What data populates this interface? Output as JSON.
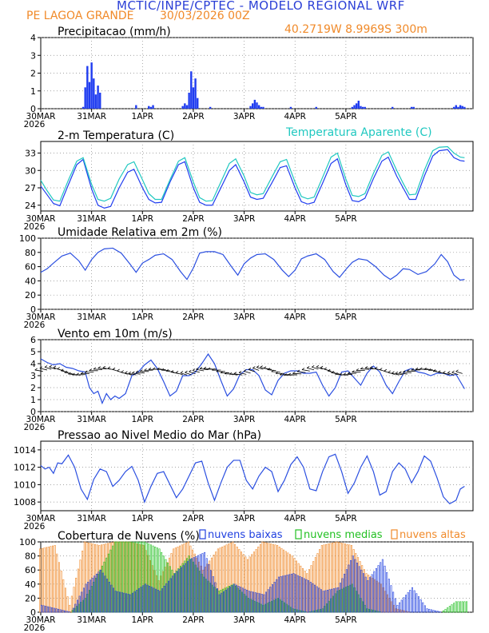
{
  "header": {
    "title": "MCTIC/INPE/CPTEC - MODELO REGIONAL WRF",
    "station": "PE LAGOA GRANDE",
    "run": "30/03/2026 00Z",
    "coords": "40.2719W 8.9969S 300m"
  },
  "colors": {
    "title": "#2b3fd6",
    "station": "#f08a2a",
    "precip": "#1f3cf0",
    "temp": "#1f3cf0",
    "apparent": "#20c8c0",
    "humidity": "#2b4fe0",
    "wind": "#2b4fe0",
    "pressure": "#2b4fe0",
    "low_cloud": "#2040e0",
    "mid_cloud": "#22c022",
    "high_cloud": "#f08a2a"
  },
  "x_axis": {
    "ticks": [
      "30MAR",
      "31MAR",
      "1APR",
      "2APR",
      "3APR",
      "4APR",
      "5APR"
    ],
    "year": "2026"
  },
  "chart_data": [
    {
      "type": "bar",
      "title": "Precipitacao (mm/h)",
      "ylim": [
        0,
        4
      ],
      "yticks": [
        "0",
        "1",
        "2",
        "3",
        "4"
      ],
      "x_hours": [
        20,
        21,
        22,
        23,
        24,
        25,
        26,
        27,
        28,
        45,
        51,
        52,
        53,
        67,
        68,
        69,
        70,
        71,
        72,
        73,
        74,
        80,
        99,
        100,
        101,
        102,
        103,
        104,
        105,
        118,
        130,
        147,
        148,
        149,
        150,
        151,
        152,
        153,
        166,
        175,
        176,
        195,
        196,
        197,
        198,
        199,
        200
      ],
      "values": [
        0.1,
        1.2,
        2.4,
        1.5,
        2.6,
        1.7,
        0.8,
        1.3,
        0.9,
        0.2,
        0.15,
        0.1,
        0.2,
        0.15,
        0.3,
        0.2,
        0.9,
        2.1,
        1.2,
        1.7,
        0.6,
        0.1,
        0.15,
        0.3,
        0.5,
        0.35,
        0.2,
        0.1,
        0.1,
        0.1,
        0.1,
        0.1,
        0.2,
        0.3,
        0.45,
        0.15,
        0.1,
        0.1,
        0.1,
        0.1,
        0.1,
        0.1,
        0.2,
        0.1,
        0.2,
        0.15,
        0.1
      ]
    },
    {
      "type": "line",
      "title": "2-m Temperatura (C)",
      "legend": "Temperatura Aparente (C)",
      "ylim": [
        23,
        35
      ],
      "yticks": [
        "24",
        "27",
        "30",
        "33"
      ],
      "series": [
        {
          "name": "2-m Temperatura (C)",
          "x": [
            0,
            3,
            6,
            9,
            13,
            17,
            20,
            24,
            27,
            30,
            33,
            37,
            41,
            44,
            48,
            51,
            54,
            57,
            61,
            65,
            68,
            72,
            75,
            78,
            81,
            85,
            89,
            92,
            96,
            99,
            102,
            105,
            109,
            113,
            116,
            120,
            123,
            126,
            129,
            133,
            137,
            140,
            144,
            147,
            150,
            153,
            157,
            161,
            164,
            168,
            171,
            174,
            177,
            181,
            185,
            188,
            192,
            195,
            198,
            200
          ],
          "values": [
            27.3,
            25.8,
            24.3,
            23.9,
            27.5,
            31.0,
            31.9,
            26.8,
            24.0,
            23.5,
            23.8,
            27.0,
            29.7,
            30.2,
            27.0,
            25.0,
            24.4,
            24.5,
            28.0,
            31.0,
            31.5,
            27.0,
            24.5,
            24.0,
            24.0,
            27.0,
            30.0,
            31.0,
            28.0,
            25.4,
            25.0,
            25.2,
            27.8,
            30.5,
            30.8,
            27.0,
            24.6,
            24.2,
            24.5,
            27.8,
            31.2,
            32.0,
            27.5,
            24.8,
            24.6,
            25.2,
            28.6,
            31.6,
            32.3,
            29.0,
            27.0,
            25.0,
            25.0,
            29.0,
            32.5,
            33.4,
            33.6,
            32.2,
            31.7,
            31.6
          ]
        },
        {
          "name": "Temperatura Aparente (C)",
          "x": [
            0,
            3,
            6,
            9,
            13,
            17,
            20,
            24,
            27,
            30,
            33,
            37,
            41,
            44,
            48,
            51,
            54,
            57,
            61,
            65,
            68,
            72,
            75,
            78,
            81,
            85,
            89,
            92,
            96,
            99,
            102,
            105,
            109,
            113,
            116,
            120,
            123,
            126,
            129,
            133,
            137,
            140,
            144,
            147,
            150,
            153,
            157,
            161,
            164,
            168,
            171,
            174,
            177,
            181,
            185,
            188,
            192,
            195,
            198,
            200
          ],
          "values": [
            28.3,
            26.5,
            24.9,
            24.7,
            28.3,
            31.6,
            32.2,
            27.6,
            25.0,
            24.7,
            25.2,
            28.5,
            31.0,
            31.5,
            28.4,
            26.0,
            25.0,
            25.0,
            28.4,
            31.6,
            32.2,
            28.0,
            25.3,
            24.7,
            24.8,
            28.0,
            31.2,
            32.0,
            29.0,
            26.2,
            25.8,
            26.0,
            28.8,
            31.5,
            31.9,
            28.0,
            25.5,
            25.1,
            25.4,
            28.8,
            32.3,
            33.0,
            28.5,
            25.7,
            25.5,
            26.0,
            29.5,
            32.6,
            33.2,
            30.0,
            27.8,
            25.8,
            25.9,
            30.0,
            33.4,
            34.0,
            34.1,
            33.0,
            32.3,
            32.2
          ]
        }
      ]
    },
    {
      "type": "line",
      "title": "Umidade Relativa em 2m (%)",
      "ylim": [
        0,
        100
      ],
      "yticks": [
        "0",
        "20",
        "40",
        "60",
        "80",
        "100"
      ],
      "x": [
        0,
        3,
        6,
        10,
        14,
        18,
        21,
        24,
        27,
        30,
        34,
        38,
        42,
        45,
        48,
        51,
        54,
        58,
        62,
        66,
        69,
        72,
        75,
        78,
        82,
        86,
        90,
        93,
        96,
        99,
        102,
        106,
        110,
        114,
        117,
        120,
        123,
        126,
        130,
        134,
        138,
        141,
        144,
        147,
        150,
        154,
        158,
        162,
        165,
        168,
        171,
        174,
        178,
        182,
        186,
        189,
        192,
        195,
        198,
        200
      ],
      "values": [
        52,
        57,
        65,
        75,
        79,
        68,
        55,
        70,
        80,
        85,
        86,
        79,
        64,
        52,
        65,
        70,
        76,
        78,
        70,
        53,
        42,
        58,
        79,
        81,
        81,
        77,
        60,
        48,
        64,
        72,
        77,
        78,
        70,
        55,
        46,
        55,
        71,
        75,
        78,
        70,
        53,
        45,
        56,
        66,
        71,
        69,
        60,
        48,
        42,
        48,
        57,
        56,
        49,
        53,
        64,
        77,
        67,
        48,
        41,
        42
      ]
    },
    {
      "type": "line",
      "title": "Vento em 10m (m/s)",
      "ylim": [
        0,
        6
      ],
      "yticks": [
        "0",
        "1",
        "2",
        "3",
        "4",
        "5",
        "6"
      ],
      "x": [
        0,
        3,
        6,
        9,
        12,
        15,
        18,
        21,
        23,
        25,
        27,
        29,
        31,
        33,
        35,
        37,
        40,
        43,
        46,
        49,
        52,
        55,
        58,
        61,
        64,
        67,
        70,
        73,
        76,
        79,
        82,
        85,
        88,
        91,
        94,
        97,
        100,
        103,
        106,
        109,
        112,
        115,
        118,
        121,
        124,
        127,
        130,
        133,
        136,
        139,
        142,
        145,
        148,
        151,
        154,
        157,
        160,
        163,
        166,
        169,
        172,
        175,
        178,
        181,
        184,
        187,
        190,
        193,
        196,
        200
      ],
      "values": [
        4.4,
        4.1,
        3.9,
        4.0,
        3.7,
        3.6,
        3.4,
        3.3,
        2.0,
        1.5,
        1.7,
        0.7,
        1.5,
        1.0,
        1.3,
        1.1,
        1.5,
        3.0,
        3.3,
        3.9,
        4.3,
        3.6,
        2.5,
        1.3,
        1.7,
        3.0,
        3.0,
        3.3,
        4.0,
        4.8,
        4.0,
        2.6,
        1.3,
        1.9,
        3.1,
        3.5,
        3.5,
        3.0,
        1.8,
        1.4,
        2.6,
        3.2,
        3.4,
        3.4,
        3.2,
        3.2,
        3.3,
        2.2,
        1.3,
        2.0,
        3.3,
        3.4,
        2.8,
        2.2,
        3.2,
        3.8,
        3.3,
        2.2,
        1.5,
        2.5,
        3.4,
        3.6,
        3.3,
        3.2,
        3.0,
        3.2,
        3.2,
        3.0,
        3.1,
        1.9
      ]
    },
    {
      "type": "line",
      "title": "Pressao ao Nivel Medio do Mar (hPa)",
      "ylim": [
        1007,
        1015
      ],
      "yticks": [
        "1008",
        "1010",
        "1012",
        "1014"
      ],
      "x": [
        0,
        2,
        4,
        6,
        8,
        10,
        13,
        16,
        19,
        22,
        25,
        28,
        31,
        34,
        37,
        40,
        43,
        46,
        49,
        52,
        55,
        58,
        61,
        64,
        67,
        70,
        73,
        76,
        79,
        82,
        85,
        88,
        91,
        94,
        97,
        100,
        103,
        106,
        109,
        112,
        115,
        118,
        121,
        124,
        127,
        130,
        133,
        136,
        139,
        142,
        145,
        148,
        151,
        154,
        157,
        160,
        163,
        166,
        169,
        172,
        175,
        178,
        181,
        184,
        187,
        190,
        193,
        196,
        198,
        200
      ],
      "values": [
        1012.2,
        1011.8,
        1012.0,
        1011.3,
        1012.5,
        1012.4,
        1013.4,
        1012.0,
        1009.5,
        1008.3,
        1010.6,
        1011.8,
        1011.5,
        1009.8,
        1010.5,
        1011.5,
        1012.1,
        1010.5,
        1008.0,
        1009.8,
        1011.3,
        1011.5,
        1010.0,
        1008.5,
        1009.5,
        1011.0,
        1012.5,
        1012.7,
        1010.2,
        1008.2,
        1010.2,
        1012.0,
        1012.8,
        1012.8,
        1010.5,
        1009.5,
        1011.0,
        1012.0,
        1011.5,
        1009.2,
        1010.5,
        1012.3,
        1013.2,
        1012.0,
        1009.5,
        1009.3,
        1011.5,
        1013.2,
        1013.5,
        1011.5,
        1009.0,
        1010.2,
        1012.0,
        1013.3,
        1011.5,
        1008.8,
        1009.2,
        1011.5,
        1012.5,
        1011.8,
        1010.2,
        1011.5,
        1013.3,
        1012.7,
        1010.8,
        1008.6,
        1007.8,
        1008.2,
        1009.5,
        1009.8
      ]
    },
    {
      "type": "bar",
      "title": "Cobertura de Nuvens (%)",
      "legend": [
        "nuvens baixas",
        "nuvens medias",
        "nuvens altas"
      ],
      "ylim": [
        0,
        100
      ],
      "yticks": [
        "0",
        "20",
        "40",
        "60",
        "80",
        "100"
      ],
      "x_hours": [
        0,
        7,
        14,
        21,
        28,
        35,
        42,
        49,
        56,
        63,
        70,
        77,
        84,
        91,
        98,
        105,
        112,
        119,
        126,
        133,
        140,
        147,
        154,
        161,
        168,
        175,
        182,
        189,
        196
      ],
      "series": [
        {
          "name": "nuvens baixas",
          "values": [
            10,
            5,
            0,
            40,
            60,
            30,
            25,
            40,
            30,
            55,
            75,
            85,
            25,
            40,
            30,
            25,
            50,
            55,
            45,
            30,
            35,
            80,
            45,
            75,
            10,
            35,
            5,
            0,
            0
          ]
        },
        {
          "name": "nuvens medias",
          "values": [
            0,
            0,
            0,
            20,
            60,
            100,
            100,
            100,
            90,
            55,
            80,
            50,
            30,
            40,
            20,
            10,
            20,
            5,
            0,
            5,
            30,
            40,
            5,
            0,
            0,
            0,
            0,
            0,
            15
          ]
        },
        {
          "name": "nuvens altas",
          "values": [
            90,
            95,
            10,
            100,
            95,
            100,
            100,
            95,
            45,
            90,
            100,
            60,
            90,
            100,
            75,
            100,
            95,
            80,
            55,
            95,
            100,
            95,
            55,
            40,
            5,
            0,
            0,
            0,
            0
          ]
        }
      ]
    }
  ]
}
